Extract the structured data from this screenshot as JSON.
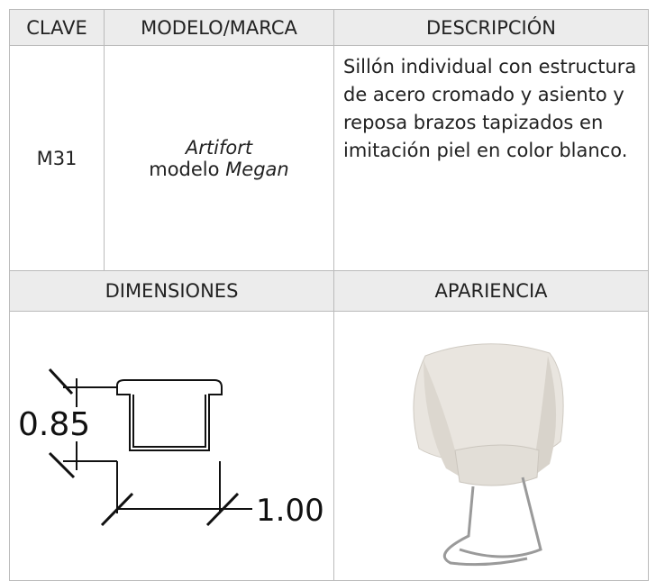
{
  "header": [
    "CLAVE",
    "MODELO/MARCA",
    "DESCRIPCIÓN"
  ],
  "row": {
    "clave": "M31",
    "brand": "Artifort",
    "model_prefix": "modelo",
    "model": "Megan",
    "description": "Sillón individual con estructura de acero cromado y asiento y reposa brazos tapizados en imitación piel en color blanco."
  },
  "sections": [
    "DIMENSIONES",
    "APARIENCIA"
  ],
  "dimensions": {
    "height": "0.85",
    "width": "1.00"
  }
}
